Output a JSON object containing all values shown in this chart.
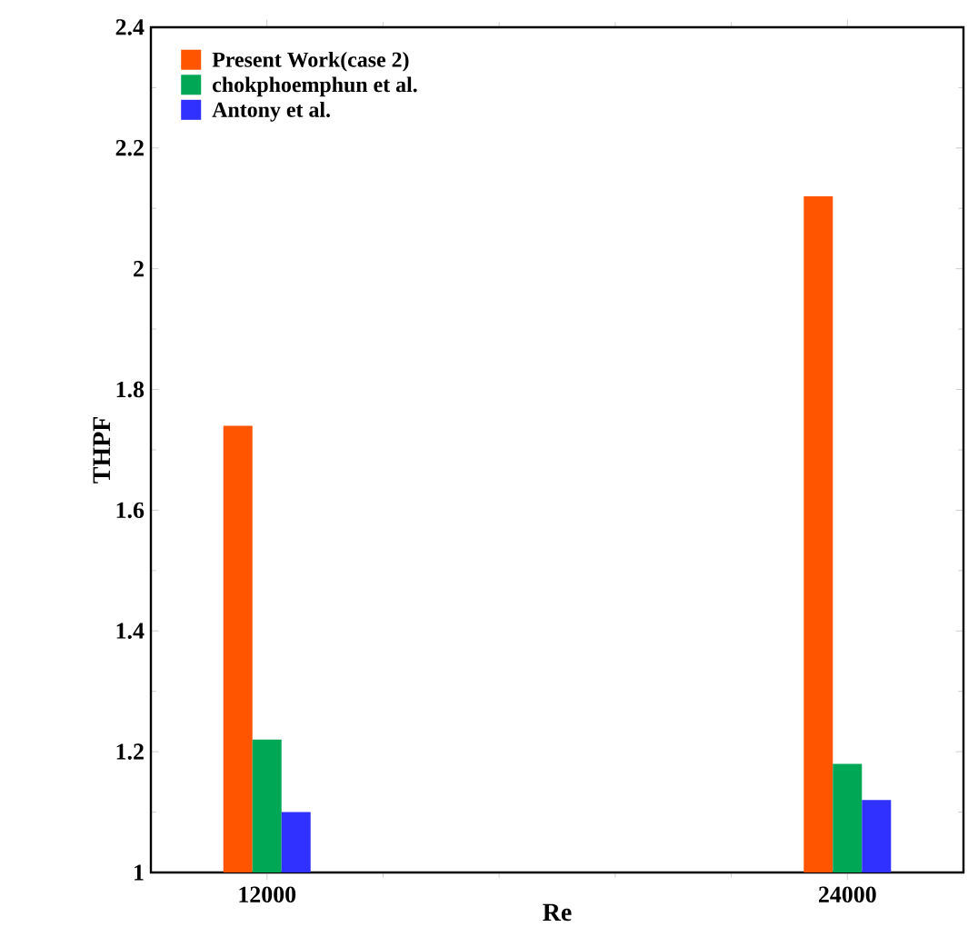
{
  "chart_data": {
    "type": "bar",
    "xlabel": "Re",
    "ylabel": "THPF",
    "x": [
      12000,
      24000
    ],
    "series": [
      {
        "name": "Present Work(case 2)",
        "color": "#ff5500",
        "values": [
          1.74,
          2.12
        ]
      },
      {
        "name": "chokphoemphun et al.",
        "color": "#00a855",
        "values": [
          1.22,
          1.18
        ]
      },
      {
        "name": "Antony et al.",
        "color": "#3030ff",
        "values": [
          1.1,
          1.12
        ]
      }
    ],
    "xlim": [
      9600,
      26400
    ],
    "xticks": [
      12000,
      24000
    ],
    "ylim": [
      1,
      2.4
    ],
    "yticks": [
      1,
      {
        "value": 1.2,
        "label": "1.2"
      },
      {
        "value": 1.4,
        "label": "1.4"
      },
      {
        "value": 1.6,
        "label": "1.6"
      },
      {
        "value": 1.8,
        "label": "1.8"
      },
      2,
      {
        "value": 2.2,
        "label": "2.2"
      },
      {
        "value": 2.4,
        "label": "2.4"
      }
    ],
    "grid": false,
    "legend": "top left"
  }
}
